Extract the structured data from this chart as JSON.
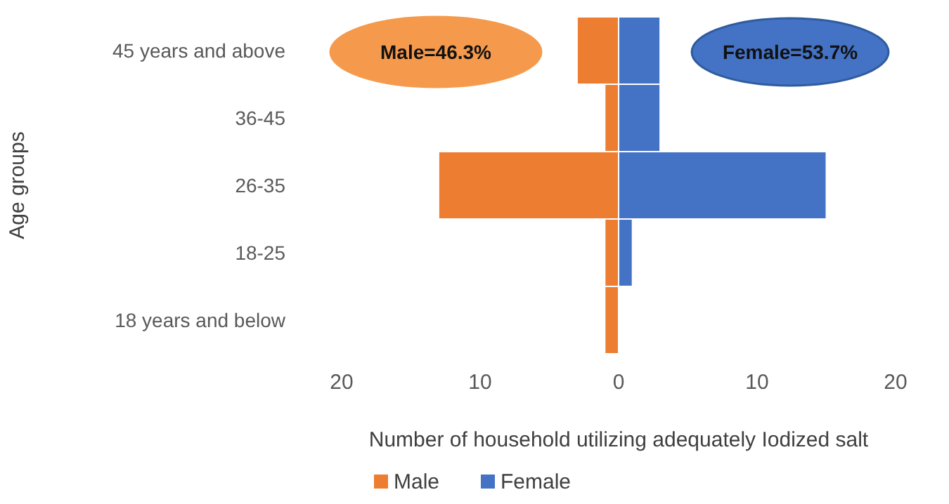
{
  "chart_data": {
    "type": "bar",
    "orientation": "horizontal",
    "stacked": true,
    "categories": [
      "45 years and above",
      "36-45",
      "26-35",
      "18-25",
      "18 years and below"
    ],
    "series": [
      {
        "name": "Male",
        "color": "#ed7d31",
        "values": [
          -3,
          -1,
          -13,
          -1,
          -1
        ]
      },
      {
        "name": "Female",
        "color": "#4472c4",
        "values": [
          3,
          3,
          15,
          1,
          0
        ]
      }
    ],
    "xlim": [
      -20,
      20
    ],
    "xticks": [
      {
        "value": -20,
        "label": "20"
      },
      {
        "value": -10,
        "label": "10"
      },
      0,
      10,
      20
    ],
    "xlabel": "Number of household utilizing adequately Iodized salt",
    "ylabel": "Age groups",
    "annotations": [
      "Male=46.3%",
      "Female=53.7%"
    ],
    "legend": "bottom",
    "grid": false
  }
}
